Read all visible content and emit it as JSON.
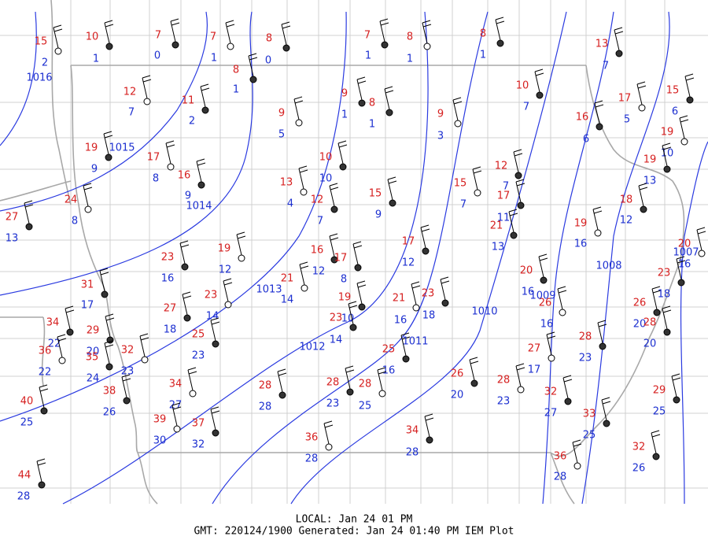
{
  "stations": [
    {
      "temp": 15,
      "dew": 2
    },
    {
      "temp": 10,
      "dew": 1
    },
    {
      "temp": 7,
      "dew": 0
    },
    {
      "temp": 7,
      "dew": 1
    },
    {
      "temp": 8,
      "dew": 0
    },
    {
      "temp": 7,
      "dew": 1
    },
    {
      "temp": 8,
      "dew": 1
    },
    {
      "temp": 8,
      "dew": 1
    },
    {
      "temp": 13,
      "dew": 7
    },
    {
      "temp": 12,
      "dew": 7
    },
    {
      "temp": 11,
      "dew": 2
    },
    {
      "temp": 8,
      "dew": 1
    },
    {
      "temp": 9,
      "dew": 5
    },
    {
      "temp": 9,
      "dew": 1
    },
    {
      "temp": 8,
      "dew": 1
    },
    {
      "temp": 9,
      "dew": 3
    },
    {
      "temp": 10,
      "dew": 7
    },
    {
      "temp": 16,
      "dew": 6
    },
    {
      "temp": 17,
      "dew": 5
    },
    {
      "temp": 15,
      "dew": 6
    },
    {
      "temp": 19,
      "dew": 9
    },
    {
      "temp": 17,
      "dew": 8
    },
    {
      "temp": 16,
      "dew": 9
    },
    {
      "temp": 10,
      "dew": 10
    },
    {
      "temp": 13,
      "dew": 4
    },
    {
      "temp": 12,
      "dew": 7
    },
    {
      "temp": 15,
      "dew": 9
    },
    {
      "temp": 15,
      "dew": 7
    },
    {
      "temp": 12,
      "dew": 7
    },
    {
      "temp": 17,
      "dew": 11
    },
    {
      "temp": 19,
      "dew": 10
    },
    {
      "temp": 19,
      "dew": 13
    },
    {
      "temp": 27,
      "dew": 13
    },
    {
      "temp": 24,
      "dew": 8
    },
    {
      "temp": 18,
      "dew": 12
    },
    {
      "temp": 21,
      "dew": 13
    },
    {
      "temp": 19,
      "dew": 16
    },
    {
      "temp": 17,
      "dew": 12
    },
    {
      "temp": 23,
      "dew": 16
    },
    {
      "temp": 19,
      "dew": 12
    },
    {
      "temp": 16,
      "dew": 12
    },
    {
      "temp": 17,
      "dew": 8
    },
    {
      "temp": 21,
      "dew": 14
    },
    {
      "temp": 31,
      "dew": 17
    },
    {
      "temp": 27,
      "dew": 18
    },
    {
      "temp": 23,
      "dew": 14
    },
    {
      "temp": 19,
      "dew": 10
    },
    {
      "temp": 23,
      "dew": 14
    },
    {
      "temp": 21,
      "dew": 16
    },
    {
      "temp": 23,
      "dew": 18
    },
    {
      "temp": 20,
      "dew": 16
    },
    {
      "temp": 26,
      "dew": 16
    },
    {
      "temp": 26,
      "dew": 20
    },
    {
      "temp": 28,
      "dew": 20
    },
    {
      "temp": 20,
      "dew": 16
    },
    {
      "temp": 23,
      "dew": 18
    },
    {
      "temp": 34,
      "dew": 22
    },
    {
      "temp": 36,
      "dew": 22
    },
    {
      "temp": 29,
      "dew": 20
    },
    {
      "temp": 35,
      "dew": 24
    },
    {
      "temp": 32,
      "dew": 23
    },
    {
      "temp": 25,
      "dew": 23
    },
    {
      "temp": 25,
      "dew": 16
    },
    {
      "temp": 27,
      "dew": 17
    },
    {
      "temp": 28,
      "dew": 23
    },
    {
      "temp": 26,
      "dew": 20
    },
    {
      "temp": 28,
      "dew": 23
    },
    {
      "temp": 32,
      "dew": 27
    },
    {
      "temp": 38,
      "dew": 26
    },
    {
      "temp": 34,
      "dew": 27
    },
    {
      "temp": 28,
      "dew": 28
    },
    {
      "temp": 28,
      "dew": 23
    },
    {
      "temp": 28,
      "dew": 25
    },
    {
      "temp": 29,
      "dew": 25
    },
    {
      "temp": 40,
      "dew": 25
    },
    {
      "temp": 39,
      "dew": 30
    },
    {
      "temp": 37,
      "dew": 32
    },
    {
      "temp": 33,
      "dew": 25
    },
    {
      "temp": 36,
      "dew": 28
    },
    {
      "temp": 34,
      "dew": 28
    },
    {
      "temp": 32,
      "dew": 26
    },
    {
      "temp": 36,
      "dew": 28
    },
    {
      "temp": 44,
      "dew": 28
    }
  ],
  "isobars": [
    1016,
    1015,
    1014,
    1013,
    1012,
    1011,
    1010,
    1009,
    1008,
    1007
  ],
  "footer": {
    "local": "LOCAL: Jan 24 01 PM",
    "gmt": "GMT: 220124/1900 Generated: Jan 24 01:40 PM IEM Plot"
  }
}
